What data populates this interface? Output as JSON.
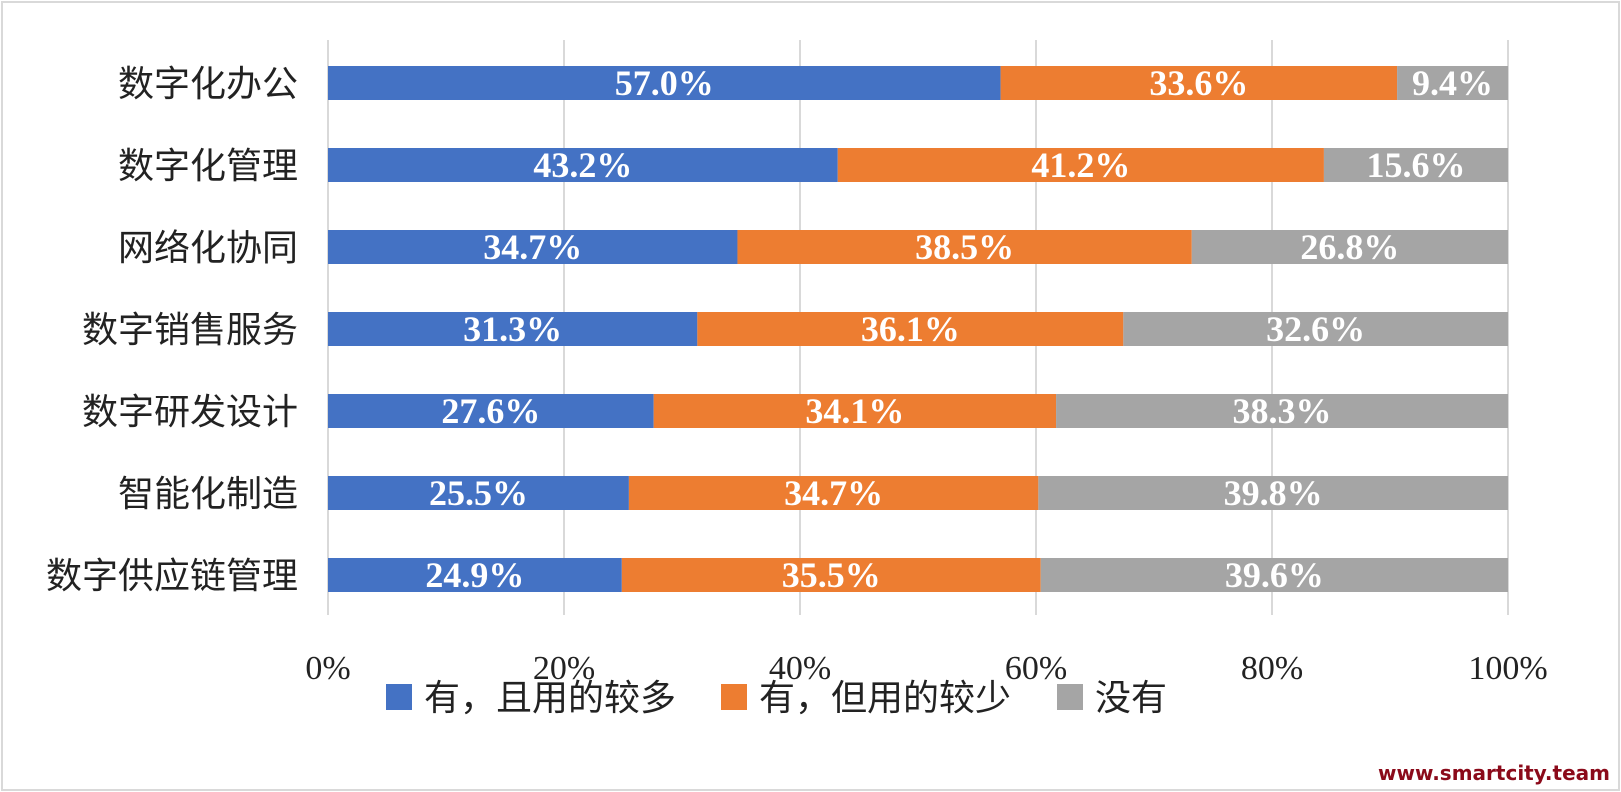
{
  "chart_data": {
    "type": "bar",
    "orientation": "horizontal",
    "stacked": "percent",
    "categories": [
      "数字化办公",
      "数字化管理",
      "网络化协同",
      "数字销售服务",
      "数字研发设计",
      "智能化制造",
      "数字供应链管理"
    ],
    "series": [
      {
        "name": "有，且用的较多",
        "color": "#4472c4",
        "values": [
          57.0,
          43.2,
          34.7,
          31.3,
          27.6,
          25.5,
          24.9
        ],
        "labels": [
          "57.0%",
          "43.2%",
          "34.7%",
          "31.3%",
          "27.6%",
          "25.5%",
          "24.9%"
        ]
      },
      {
        "name": "有，但用的较少",
        "color": "#ed7d31",
        "values": [
          33.6,
          41.2,
          38.5,
          36.1,
          34.1,
          34.7,
          35.5
        ],
        "labels": [
          "33.6%",
          "41.2%",
          "38.5%",
          "36.1%",
          "34.1%",
          "34.7%",
          "35.5%"
        ]
      },
      {
        "name": "没有",
        "color": "#a5a5a5",
        "values": [
          9.4,
          15.6,
          26.8,
          32.6,
          38.3,
          39.8,
          39.6
        ],
        "labels": [
          "9.4%",
          "15.6%",
          "26.8%",
          "32.6%",
          "38.3%",
          "39.8%",
          "39.6%"
        ]
      }
    ],
    "xlim": [
      0,
      100
    ],
    "xticks": [
      0,
      20,
      40,
      60,
      80,
      100
    ],
    "xtick_labels": [
      "0%",
      "20%",
      "40%",
      "60%",
      "80%",
      "100%"
    ],
    "grid": "vertical",
    "legend_position": "bottom"
  },
  "watermark": "www.smartcity.team"
}
